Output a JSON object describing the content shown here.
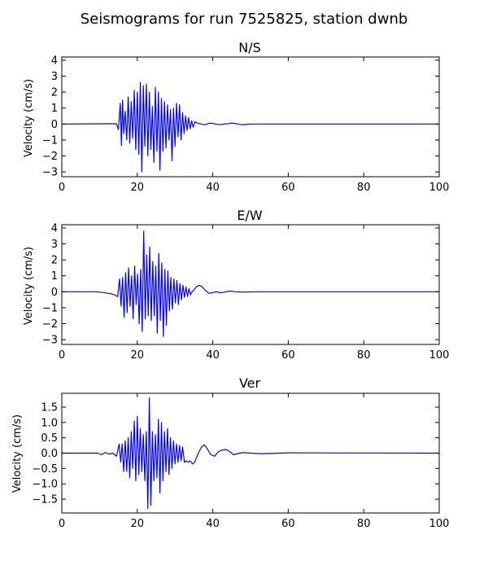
{
  "figure": {
    "title": "Seismograms for run 7525825, station dwnb"
  },
  "chart_data": [
    {
      "type": "line",
      "title": "N/S",
      "xlabel": "",
      "ylabel": "Velocity (cm/s)",
      "xlim": [
        0,
        100
      ],
      "ylim": [
        -3.3,
        4.2
      ],
      "xticks": [
        0,
        20,
        40,
        60,
        80,
        100
      ],
      "yticks": [
        -3,
        -2,
        -1,
        0,
        1,
        2,
        3,
        4
      ],
      "ytick_labels": [
        "−3",
        "−2",
        "−1",
        "0",
        "1",
        "2",
        "3",
        "4"
      ],
      "color": "#0000ff",
      "series": [
        {
          "x": [
            0,
            14.5,
            15.0,
            15.5,
            15.8,
            16.1,
            16.4,
            16.8,
            17.2,
            17.6,
            18.0,
            18.4,
            18.8,
            19.2,
            19.6,
            20.0,
            20.4,
            20.8,
            21.2,
            21.6,
            22.0,
            22.4,
            22.8,
            23.2,
            23.6,
            24.0,
            24.4,
            24.8,
            25.2,
            25.6,
            26.0,
            26.4,
            26.8,
            27.2,
            27.6,
            28.0,
            28.4,
            28.8,
            29.2,
            29.6,
            30.0,
            30.4,
            30.8,
            31.2,
            31.6,
            32.0,
            32.4,
            32.8,
            33.2,
            33.6,
            34.0,
            34.4,
            34.8,
            35.3,
            36.0,
            37.0,
            38.0,
            39.0,
            40.0,
            41.0,
            42.0,
            43.0,
            44.0,
            45.0,
            46.0,
            47.0,
            48.0,
            50.0,
            52.0,
            55.0,
            100.0
          ],
          "y": [
            0,
            0.02,
            -0.35,
            1.3,
            -1.35,
            1.5,
            -0.6,
            0.8,
            -1.0,
            1.7,
            -1.2,
            1.4,
            -0.9,
            2.1,
            -1.6,
            2.0,
            -1.9,
            2.6,
            -3.0,
            2.4,
            -1.4,
            2.5,
            -2.0,
            2.0,
            -1.6,
            1.1,
            -2.4,
            2.3,
            -1.7,
            2.0,
            -2.9,
            1.6,
            -1.7,
            1.4,
            -1.5,
            1.2,
            -1.0,
            0.9,
            -2.3,
            1.0,
            -1.4,
            1.3,
            -0.8,
            1.2,
            -1.0,
            0.7,
            -0.6,
            0.5,
            -0.4,
            0.4,
            -0.3,
            0.2,
            -0.2,
            0.15,
            0.05,
            0.0,
            -0.05,
            0.05,
            0.04,
            -0.02,
            -0.03,
            0.0,
            0.02,
            0.06,
            0.03,
            -0.02,
            -0.04,
            0.0,
            0.0,
            0.0,
            0.0
          ]
        }
      ]
    },
    {
      "type": "line",
      "title": "E/W",
      "xlabel": "",
      "ylabel": "Velocity (cm/s)",
      "xlim": [
        0,
        100
      ],
      "ylim": [
        -3.3,
        4.2
      ],
      "xticks": [
        0,
        20,
        40,
        60,
        80,
        100
      ],
      "yticks": [
        -3,
        -2,
        -1,
        0,
        1,
        2,
        3,
        4
      ],
      "ytick_labels": [
        "−3",
        "−2",
        "−1",
        "0",
        "1",
        "2",
        "3",
        "4"
      ],
      "color": "#0000ff",
      "series": [
        {
          "x": [
            0,
            9.0,
            11.0,
            13.0,
            14.0,
            14.8,
            15.3,
            15.7,
            16.1,
            16.5,
            16.9,
            17.3,
            17.7,
            18.1,
            18.5,
            18.9,
            19.3,
            19.7,
            20.1,
            20.5,
            20.9,
            21.3,
            21.7,
            22.1,
            22.5,
            22.9,
            23.3,
            23.7,
            24.1,
            24.5,
            24.9,
            25.3,
            25.7,
            26.1,
            26.5,
            26.9,
            27.3,
            27.7,
            28.1,
            28.5,
            28.9,
            29.3,
            29.7,
            30.1,
            30.5,
            30.9,
            31.3,
            31.7,
            32.1,
            32.5,
            32.9,
            33.3,
            33.7,
            34.1,
            34.5,
            35.0,
            35.6,
            36.3,
            37.0,
            38.0,
            39.0,
            40.0,
            41.0,
            42.0,
            43.0,
            44.0,
            45.0,
            46.0,
            48.0,
            52.0,
            100.0
          ],
          "y": [
            0,
            0.0,
            -0.05,
            -0.12,
            -0.2,
            -0.3,
            0.8,
            -0.9,
            0.9,
            -1.6,
            1.2,
            -1.3,
            1.5,
            -0.9,
            1.0,
            -1.7,
            1.6,
            -0.8,
            1.1,
            -2.0,
            1.4,
            -2.5,
            3.8,
            -1.7,
            2.3,
            -1.5,
            2.8,
            -1.8,
            1.9,
            -1.5,
            1.6,
            -2.6,
            2.4,
            -1.8,
            1.8,
            -2.8,
            1.4,
            -2.1,
            1.3,
            -1.2,
            0.9,
            -1.1,
            0.8,
            -0.7,
            0.7,
            -0.8,
            0.5,
            -0.5,
            0.4,
            -0.35,
            0.3,
            -0.3,
            0.2,
            -0.2,
            0.0,
            0.1,
            0.3,
            0.4,
            0.35,
            0.1,
            -0.1,
            -0.05,
            0.0,
            -0.06,
            -0.03,
            0.03,
            0.04,
            0.0,
            -0.02,
            0.0,
            0.0
          ]
        }
      ]
    },
    {
      "type": "line",
      "title": "Ver",
      "xlabel": "",
      "ylabel": "Velocity (cm/s)",
      "xlim": [
        0,
        100
      ],
      "ylim": [
        -1.95,
        1.95
      ],
      "xticks": [
        0,
        20,
        40,
        60,
        80,
        100
      ],
      "yticks": [
        -1.5,
        -1.0,
        -0.5,
        0.0,
        0.5,
        1.0,
        1.5
      ],
      "ytick_labels": [
        "−1.5",
        "−1.0",
        "−0.5",
        "0.0",
        "0.5",
        "1.0",
        "1.5"
      ],
      "color": "#0000ff",
      "series": [
        {
          "x": [
            0,
            9.5,
            10.5,
            11.5,
            12.5,
            13.5,
            14.5,
            15.2,
            15.6,
            16.0,
            16.4,
            16.8,
            17.2,
            17.6,
            18.0,
            18.4,
            18.8,
            19.2,
            19.6,
            20.0,
            20.4,
            20.8,
            21.2,
            21.6,
            22.0,
            22.4,
            22.8,
            23.2,
            23.6,
            24.0,
            24.4,
            24.8,
            25.2,
            25.6,
            26.0,
            26.4,
            26.8,
            27.2,
            27.6,
            28.0,
            28.4,
            28.8,
            29.2,
            29.6,
            30.0,
            30.4,
            30.8,
            31.2,
            31.6,
            32.0,
            32.5,
            33.0,
            33.5,
            34.0,
            34.6,
            35.2,
            36.0,
            37.0,
            37.8,
            38.5,
            39.5,
            40.5,
            41.5,
            42.5,
            43.5,
            44.5,
            45.5,
            46.5,
            48.0,
            50.0,
            53.0,
            60.0,
            100.0
          ],
          "y": [
            0,
            0.0,
            -0.05,
            0.02,
            -0.03,
            0.0,
            -0.1,
            0.3,
            -0.3,
            0.3,
            -0.6,
            0.4,
            -0.6,
            0.5,
            -0.8,
            0.7,
            -0.5,
            1.05,
            -0.9,
            1.2,
            -0.7,
            0.8,
            -0.6,
            0.6,
            -0.9,
            0.7,
            -1.8,
            1.8,
            -1.7,
            0.7,
            -0.9,
            0.6,
            -0.8,
            1.1,
            -1.3,
            1.0,
            -0.9,
            0.7,
            -0.6,
            0.8,
            -0.7,
            0.5,
            -0.5,
            0.4,
            -0.35,
            0.3,
            -0.3,
            0.25,
            -0.25,
            0.2,
            -0.3,
            -0.25,
            -0.3,
            -0.25,
            -0.35,
            -0.3,
            -0.05,
            0.2,
            0.27,
            0.15,
            -0.05,
            -0.1,
            0.05,
            0.1,
            0.12,
            0.05,
            -0.05,
            -0.02,
            0.02,
            0.0,
            -0.02,
            0.01,
            0.0
          ]
        }
      ]
    }
  ]
}
